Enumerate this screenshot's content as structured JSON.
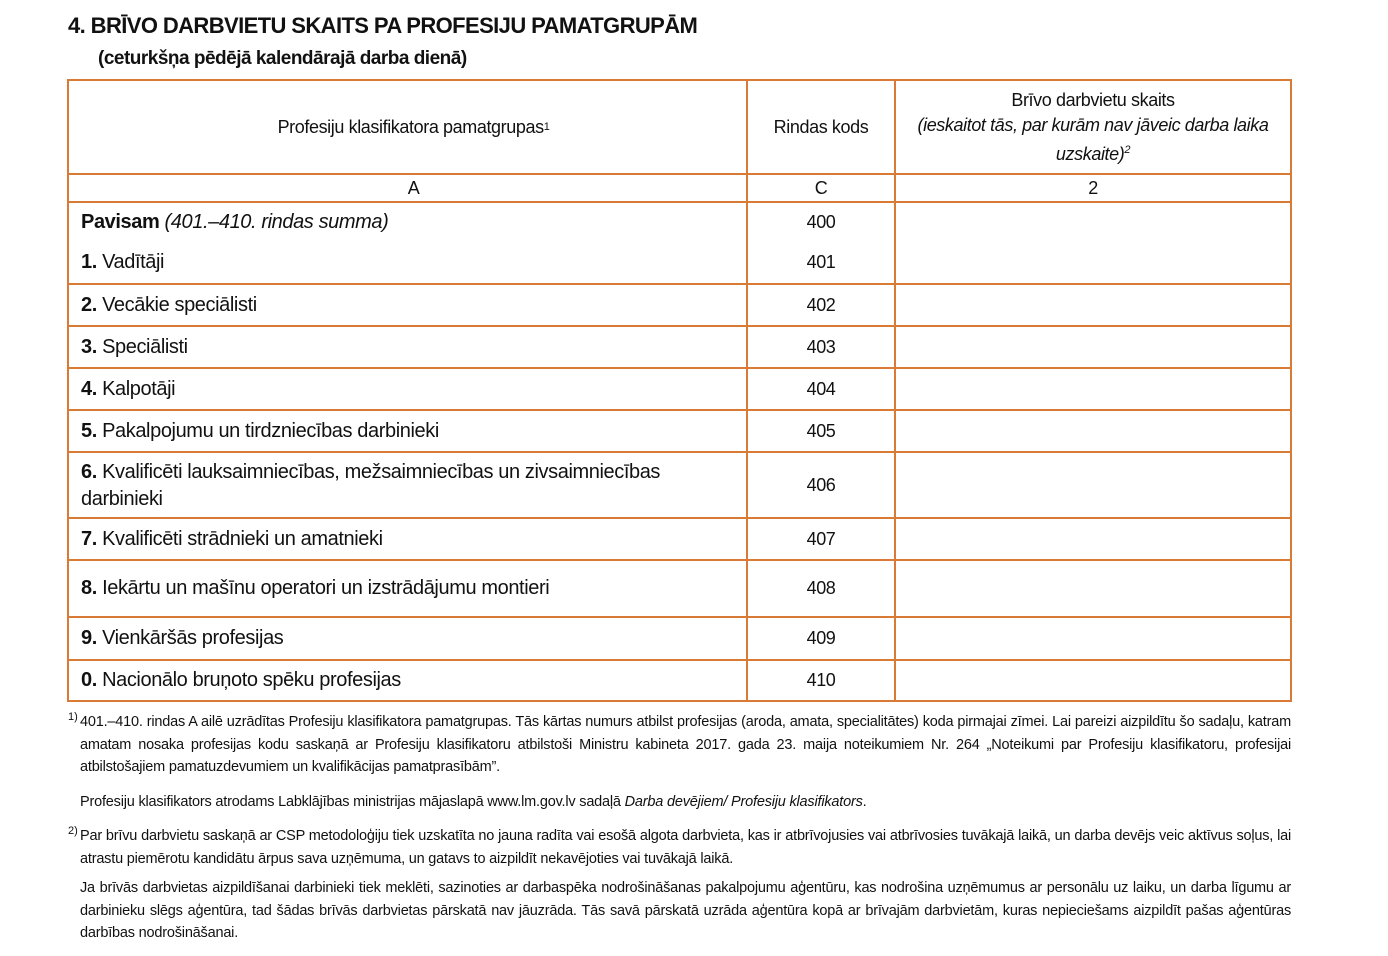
{
  "title": "4. BRĪVO DARBVIETU SKAITS PA PROFESIJU PAMATGRUPĀM",
  "subtitle": "(ceturkšņa pēdējā kalendārajā darba dienā)",
  "table": {
    "headers": {
      "col1": "Profesiju klasifikatora pamatgrupas",
      "col1_sup": "1",
      "col2": "Rindas kods",
      "col3_line1": "Brīvo darbvietu skaits",
      "col3_line2": "(ieskaitot tās, par kurām nav jāveic darba laika uzskaite)",
      "col3_sup": "2"
    },
    "letters": [
      "A",
      "C",
      "2"
    ],
    "total": {
      "bold": "Pavisam",
      "italic": "(401.–410. rindas summa)",
      "code": "400",
      "value": ""
    },
    "rows": [
      {
        "num": "1.",
        "label": "Vadītāji",
        "code": "401",
        "value": ""
      },
      {
        "num": "2.",
        "label": "Vecākie speciālisti",
        "code": "402",
        "value": ""
      },
      {
        "num": "3.",
        "label": "Speciālisti",
        "code": "403",
        "value": ""
      },
      {
        "num": "4.",
        "label": "Kalpotāji",
        "code": "404",
        "value": ""
      },
      {
        "num": "5.",
        "label": "Pakalpojumu un tirdzniecības darbinieki",
        "code": "405",
        "value": ""
      },
      {
        "num": "6.",
        "label": "Kvalificēti lauksaimniecības, mežsaimniecības un zivsaimniecības darbinieki",
        "code": "406",
        "value": ""
      },
      {
        "num": "7.",
        "label": "Kvalificēti strādnieki un amatnieki",
        "code": "407",
        "value": ""
      },
      {
        "num": "8.",
        "label": "Iekārtu un mašīnu operatori un izstrādājumu montieri",
        "code": "408",
        "value": ""
      },
      {
        "num": "9.",
        "label": "Vienkāršās profesijas",
        "code": "409",
        "value": ""
      },
      {
        "num": "0.",
        "label": "Nacionālo bruņoto spēku profesijas",
        "code": "410",
        "value": ""
      }
    ]
  },
  "footnotes": {
    "fn1_mark": "1)",
    "fn1": "401.–410. rindas A ailē uzrādītas Profesiju klasifikatora pamatgrupas. Tās kārtas numurs atbilst profesijas (aroda, amata, specialitātes) koda pirmajai zīmei. Lai pareizi aizpildītu šo sadaļu, katram amatam nosaka profesijas kodu saskaņā ar Profesiju klasifikatoru atbilstoši Ministru kabineta 2017. gada 23. maija noteikumiem Nr. 264 „Noteikumi par Profesiju klasifikatoru, profesijai atbilstošajiem pamatuzdevumiem un kvalifikācijas pamatprasībām”.",
    "fn1b_text": "Profesiju klasifikators atrodams Labklājības ministrijas mājaslapā www.lm.gov.lv sadaļā ",
    "fn1b_italic": "Darba devējiem/ Profesiju klasifikators",
    "fn1b_end": ".",
    "fn2_mark": "2)",
    "fn2": "Par brīvu darbvietu saskaņā ar CSP metodoloģiju tiek uzskatīta no jauna radīta vai esošā algota darbvieta, kas ir atbrīvojusies vai atbrīvosies tuvākajā laikā, un darba devējs veic aktīvus soļus, lai atrastu piemērotu kandidātu ārpus sava uzņēmuma, un gatavs to aizpildīt nekavējoties vai tuvākajā laikā.",
    "fn2b": "Ja brīvās darbvietas aizpildīšanai darbinieki tiek meklēti, sazinoties ar darbaspēka nodrošināšanas pakalpojumu aģentūru, kas nodrošina uzņēmumus ar personālu uz laiku, un darba līgumu ar darbinieku slēgs aģentūra, tad šādas brīvās darbvietas pārskatā nav jāuzrāda. Tās savā pārskatā uzrāda aģentūra kopā ar brīvajām darbvietām, kuras nepieciešams aizpildīt pašas aģentūras darbības nodrošināšanai."
  },
  "colors": {
    "border": "#d97a35"
  }
}
